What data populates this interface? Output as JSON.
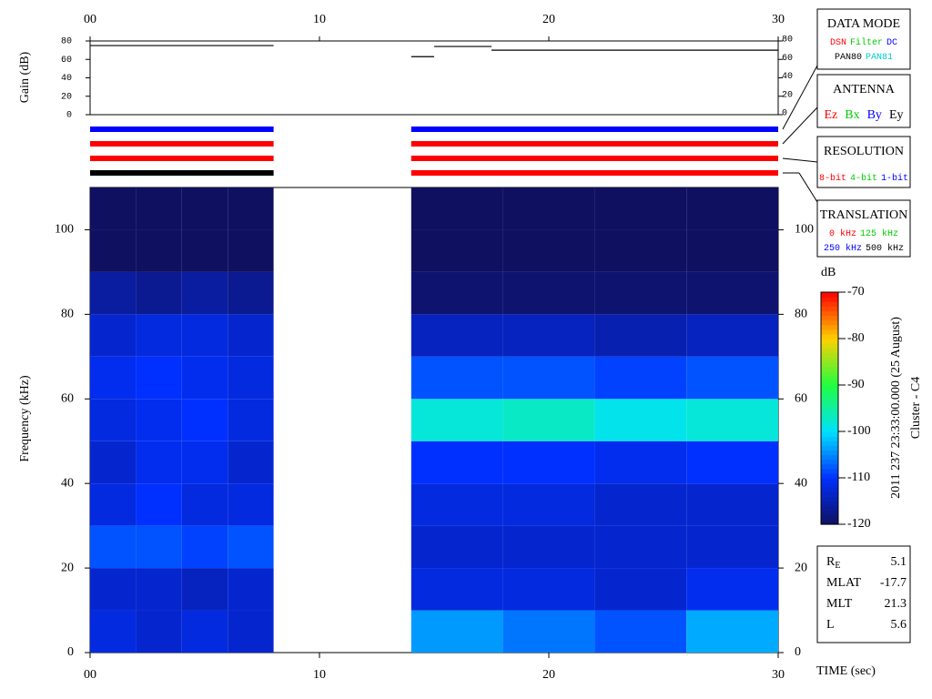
{
  "chart_data": [
    {
      "type": "line",
      "ylabel": "Gain (dB)",
      "xlim": [
        0,
        30
      ],
      "xticks": [
        {
          "value": 0,
          "label": "00"
        },
        10,
        20,
        30
      ],
      "ylim": [
        0,
        80
      ],
      "yticks": [
        0,
        20,
        40,
        60,
        80
      ],
      "x": [
        0,
        8,
        11,
        14,
        15,
        15,
        15,
        17.5,
        17.5,
        17.5,
        30
      ],
      "series": [
        {
          "color": "#000000",
          "values": [
            75,
            75,
            null,
            63,
            63,
            null,
            74,
            74,
            null,
            70,
            70
          ]
        }
      ]
    },
    {
      "type": "timeline",
      "xlim": [
        0,
        30
      ],
      "segments": [
        {
          "start": 0,
          "end": 8,
          "colors": [
            "#0000ff",
            "#ff0000",
            "#ff0000",
            "#000000"
          ]
        },
        {
          "start": 14,
          "end": 30,
          "colors": [
            "#0000ff",
            "#ff0000",
            "#ff0000",
            "#ff0000"
          ]
        }
      ]
    },
    {
      "type": "heatmap",
      "xlabel": "TIME (sec)",
      "ylabel": "Frequency (kHz)",
      "xlim": [
        0,
        30
      ],
      "xticks": [
        {
          "value": 0,
          "label": "00"
        },
        10,
        20,
        30
      ],
      "ylim": [
        0,
        110
      ],
      "yticks": [
        0,
        20,
        40,
        60,
        80,
        100
      ],
      "x_edges": [
        0,
        2,
        4,
        6,
        8,
        14,
        18,
        22,
        26,
        30
      ],
      "y_edges": [
        0,
        10,
        20,
        30,
        40,
        50,
        60,
        70,
        80,
        90,
        100,
        110
      ],
      "z": [
        [
          -112,
          -113,
          -112,
          -113,
          null,
          -104,
          -106,
          -108,
          -103
        ],
        [
          -113,
          -113,
          -114,
          -113,
          null,
          -112,
          -112,
          -113,
          -111
        ],
        [
          -108,
          -108,
          -109,
          -108,
          null,
          -113,
          -113,
          -113,
          -113
        ],
        [
          -112,
          -110,
          -112,
          -112,
          null,
          -112,
          -112,
          -113,
          -113
        ],
        [
          -113,
          -111,
          -111,
          -113,
          null,
          -110,
          -110,
          -111,
          -110
        ],
        [
          -112,
          -111,
          -110,
          -112,
          null,
          -98,
          -97,
          -99,
          -98
        ],
        [
          -111,
          -110,
          -111,
          -112,
          null,
          -108,
          -108,
          -109,
          -108
        ],
        [
          -113,
          -112,
          -112,
          -113,
          null,
          -114,
          -114,
          -115,
          -114
        ],
        [
          -116,
          -117,
          -116,
          -117,
          null,
          -119,
          -119,
          -119,
          -119
        ],
        [
          -120,
          -120,
          -120,
          -120,
          null,
          -120,
          -120,
          -120,
          -120
        ],
        [
          -120,
          -120,
          -120,
          -120,
          null,
          -120,
          -120,
          -120,
          -120
        ]
      ],
      "colormap": [
        "#101060",
        "#0030ff",
        "#00e0ff",
        "#20ff40",
        "#ffd000",
        "#ff0000"
      ],
      "zlabel": "dB",
      "zlim": [
        -120,
        -70
      ],
      "zticks": [
        -120,
        -110,
        -100,
        -90,
        -80,
        -70
      ],
      "annotations": [
        "2011 237 23:33:00.000 (25 August)",
        "Cluster - C4"
      ]
    }
  ],
  "legend_boxes": [
    {
      "title": "DATA MODE",
      "rows": [
        [
          {
            "text": "DSN",
            "color": "#ff0000"
          },
          {
            "text": "Filter",
            "color": "#00cc00"
          },
          {
            "text": "DC",
            "color": "#0000ff"
          }
        ],
        [
          {
            "text": "PAN80",
            "color": "#000000"
          },
          {
            "text": "PAN81",
            "color": "#00cccc"
          }
        ]
      ]
    },
    {
      "title": "ANTENNA",
      "rows": [
        [
          {
            "text": "Ez",
            "color": "#ff0000"
          },
          {
            "text": "Bx",
            "color": "#00cc00"
          },
          {
            "text": "By",
            "color": "#0000ff"
          },
          {
            "text": "Ey",
            "color": "#000000"
          }
        ]
      ]
    },
    {
      "title": "RESOLUTION",
      "rows": [
        [
          {
            "text": "8-bit",
            "color": "#ff0000"
          },
          {
            "text": "4-bit",
            "color": "#00cc00"
          },
          {
            "text": "1-bit",
            "color": "#0000ff"
          }
        ]
      ]
    },
    {
      "title": "TRANSLATION",
      "rows": [
        [
          {
            "text": "0 kHz",
            "color": "#ff0000"
          },
          {
            "text": "125 kHz",
            "color": "#00cc00"
          }
        ],
        [
          {
            "text": "250 kHz",
            "color": "#0000ff"
          },
          {
            "text": "500 kHz",
            "color": "#000000"
          }
        ]
      ]
    }
  ],
  "info": [
    {
      "label": "R",
      "sub": "E",
      "value": "5.1"
    },
    {
      "label": "MLAT",
      "value": "-17.7"
    },
    {
      "label": "MLT",
      "value": "21.3"
    },
    {
      "label": "L",
      "value": "5.6"
    }
  ]
}
